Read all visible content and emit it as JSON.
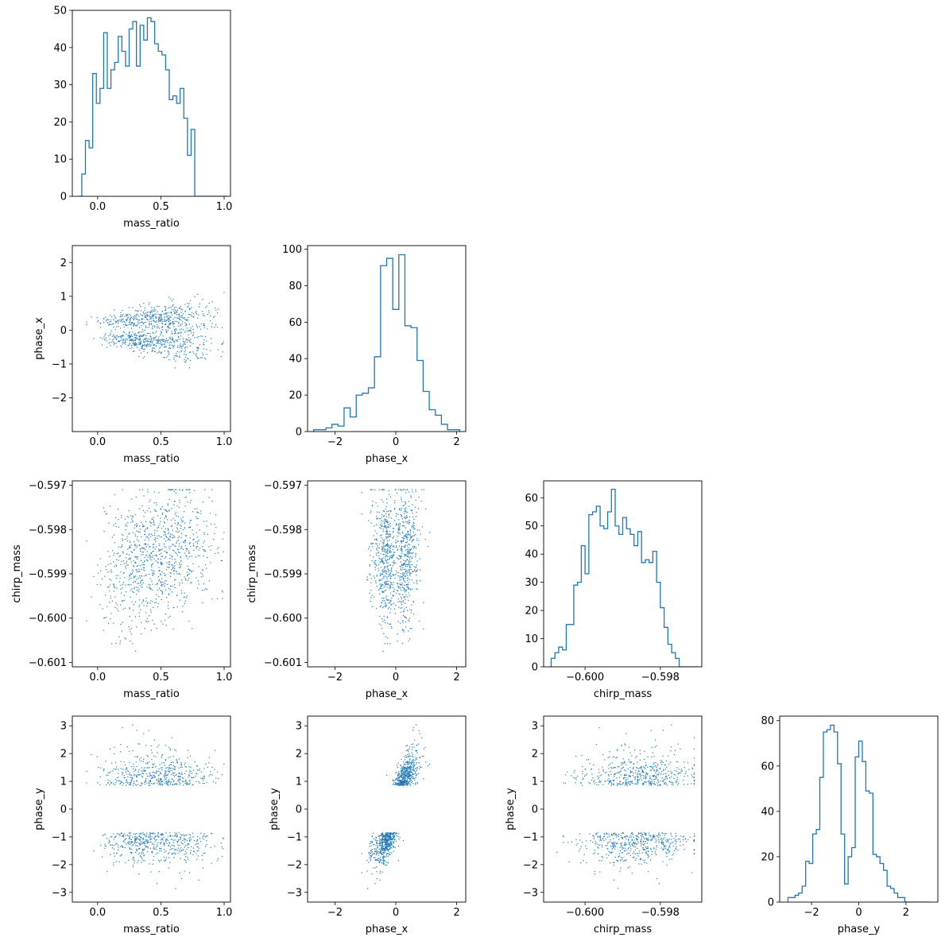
{
  "figure": {
    "type": "corner-plot",
    "parameters": [
      "mass_ratio",
      "phase_x",
      "chirp_mass",
      "phase_y"
    ],
    "accent_color": "#1f77b4"
  },
  "chart_data": [
    {
      "id": "hist-mass_ratio",
      "type": "bar",
      "style": "step-histogram",
      "row": 0,
      "col": 0,
      "xlabel": "mass_ratio",
      "ylabel": "",
      "xlim": [
        -0.2,
        1.05
      ],
      "ylim": [
        0,
        50
      ],
      "xticks": [
        0.0,
        0.5,
        1.0
      ],
      "xtick_labels": [
        "0.0",
        "0.5",
        "1.0"
      ],
      "yticks": [
        0,
        10,
        20,
        30,
        40,
        50
      ],
      "ytick_labels": [
        "0",
        "10",
        "20",
        "30",
        "40",
        "50"
      ],
      "bin_edges": [
        -0.154,
        -0.1252,
        -0.0964,
        -0.0676,
        -0.0388,
        -0.01,
        0.0188,
        0.0476,
        0.0764,
        0.1052,
        0.134,
        0.1628,
        0.1916,
        0.2204,
        0.2492,
        0.278,
        0.3068,
        0.3356,
        0.3644,
        0.3932,
        0.422,
        0.4508,
        0.4796,
        0.5084,
        0.5372,
        0.566,
        0.5948,
        0.6236,
        0.6524,
        0.6812,
        0.71,
        0.7388,
        0.7676,
        0.7964,
        0.8252,
        0.854,
        0.8828,
        0.9116,
        0.9404,
        0.9692,
        0.998,
        1.0268
      ],
      "counts": [
        0,
        6,
        15,
        13,
        33,
        25,
        29,
        44,
        29,
        34,
        36,
        43,
        39,
        35,
        45,
        47,
        35,
        46,
        42,
        48,
        47,
        41,
        39,
        38,
        34,
        26,
        27,
        25,
        29,
        21,
        11,
        18,
        0,
        0,
        0,
        0,
        0,
        0,
        0,
        0,
        0
      ]
    },
    {
      "id": "scatter-mass_ratio-phase_x",
      "type": "scatter",
      "row": 1,
      "col": 0,
      "xlabel": "mass_ratio",
      "ylabel": "phase_x",
      "xlim": [
        -0.2,
        1.05
      ],
      "ylim": [
        -3.0,
        2.5
      ],
      "xticks": [
        0.0,
        0.5,
        1.0
      ],
      "xtick_labels": [
        "0.0",
        "0.5",
        "1.0"
      ],
      "yticks": [
        -2,
        -1,
        0,
        1,
        2
      ],
      "ytick_labels": [
        "−2",
        "−1",
        "0",
        "1",
        "2"
      ],
      "n_points": 1000
    },
    {
      "id": "hist-phase_x",
      "type": "bar",
      "style": "step-histogram",
      "row": 1,
      "col": 1,
      "xlabel": "phase_x",
      "ylabel": "",
      "xlim": [
        -2.9,
        2.3
      ],
      "ylim": [
        0,
        102
      ],
      "xticks": [
        -2,
        0,
        2
      ],
      "xtick_labels": [
        "−2",
        "0",
        "2"
      ],
      "yticks": [
        0,
        20,
        40,
        60,
        80,
        100
      ],
      "ytick_labels": [
        "0",
        "20",
        "40",
        "60",
        "80",
        "100"
      ],
      "bin_edges": [
        -2.7,
        -2.5,
        -2.3,
        -2.1,
        -1.9,
        -1.7,
        -1.5,
        -1.3,
        -1.1,
        -0.9,
        -0.7,
        -0.5,
        -0.3,
        -0.1,
        0.1,
        0.3,
        0.5,
        0.7,
        0.9,
        1.1,
        1.3,
        1.5,
        1.7,
        1.9,
        2.1
      ],
      "counts": [
        1,
        1,
        2,
        4,
        3,
        13,
        8,
        20,
        21,
        24,
        41,
        91,
        95,
        67,
        97,
        58,
        57,
        39,
        22,
        12,
        9,
        4,
        1,
        1
      ]
    },
    {
      "id": "scatter-mass_ratio-chirp_mass",
      "type": "scatter",
      "row": 2,
      "col": 0,
      "xlabel": "mass_ratio",
      "ylabel": "chirp_mass",
      "xlim": [
        -0.2,
        1.05
      ],
      "ylim": [
        -0.6011,
        -0.5969
      ],
      "xticks": [
        0.0,
        0.5,
        1.0
      ],
      "xtick_labels": [
        "0.0",
        "0.5",
        "1.0"
      ],
      "yticks": [
        -0.601,
        -0.6,
        -0.599,
        -0.598,
        -0.597
      ],
      "ytick_labels": [
        "−0.601",
        "−0.600",
        "−0.599",
        "−0.598",
        "−0.597"
      ],
      "n_points": 1000
    },
    {
      "id": "scatter-phase_x-chirp_mass",
      "type": "scatter",
      "row": 2,
      "col": 1,
      "xlabel": "phase_x",
      "ylabel": "chirp_mass",
      "xlim": [
        -2.9,
        2.3
      ],
      "ylim": [
        -0.6011,
        -0.5969
      ],
      "xticks": [
        -2,
        0,
        2
      ],
      "xtick_labels": [
        "−2",
        "0",
        "2"
      ],
      "yticks": [
        -0.601,
        -0.6,
        -0.599,
        -0.598,
        -0.597
      ],
      "ytick_labels": [
        "−0.601",
        "−0.600",
        "−0.599",
        "−0.598",
        "−0.597"
      ],
      "n_points": 1000
    },
    {
      "id": "hist-chirp_mass",
      "type": "bar",
      "style": "step-histogram",
      "row": 2,
      "col": 2,
      "xlabel": "chirp_mass",
      "ylabel": "",
      "xlim": [
        -0.6011,
        -0.5969
      ],
      "ylim": [
        0,
        66
      ],
      "xticks": [
        -0.6,
        -0.598
      ],
      "xtick_labels": [
        "−0.600",
        "−0.598"
      ],
      "yticks": [
        0,
        10,
        20,
        30,
        40,
        50,
        60
      ],
      "ytick_labels": [
        "0",
        "10",
        "20",
        "30",
        "40",
        "50",
        "60"
      ],
      "bin_edges": [
        -0.6009,
        -0.6008,
        -0.6007,
        -0.6006,
        -0.6005,
        -0.6004,
        -0.6003,
        -0.6002,
        -0.6001,
        -0.6,
        -0.5999,
        -0.5998,
        -0.5997,
        -0.5996,
        -0.5995,
        -0.5994,
        -0.5993,
        -0.5992,
        -0.5991,
        -0.599,
        -0.5989,
        -0.5988,
        -0.5987,
        -0.5986,
        -0.5985,
        -0.5984,
        -0.5983,
        -0.5982,
        -0.5981,
        -0.598,
        -0.5979,
        -0.5978,
        -0.5977,
        -0.5976,
        -0.5975,
        -0.5974,
        -0.5973,
        -0.5972,
        -0.5971,
        -0.597
      ],
      "counts": [
        3,
        5,
        7,
        6,
        15,
        15,
        29,
        30,
        43,
        33,
        54,
        55,
        57,
        50,
        49,
        55,
        63,
        50,
        47,
        53,
        49,
        47,
        43,
        48,
        37,
        38,
        37,
        41,
        30,
        21,
        14,
        8,
        5,
        3,
        0,
        0,
        0,
        0,
        0
      ]
    },
    {
      "id": "scatter-mass_ratio-phase_y",
      "type": "scatter",
      "row": 3,
      "col": 0,
      "xlabel": "mass_ratio",
      "ylabel": "phase_y",
      "xlim": [
        -0.2,
        1.05
      ],
      "ylim": [
        -3.35,
        3.35
      ],
      "xticks": [
        0.0,
        0.5,
        1.0
      ],
      "xtick_labels": [
        "0.0",
        "0.5",
        "1.0"
      ],
      "yticks": [
        -3,
        -2,
        -1,
        0,
        1,
        2,
        3
      ],
      "ytick_labels": [
        "−3",
        "−2",
        "−1",
        "0",
        "1",
        "2",
        "3"
      ],
      "n_points": 1000
    },
    {
      "id": "scatter-phase_x-phase_y",
      "type": "scatter",
      "row": 3,
      "col": 1,
      "xlabel": "phase_x",
      "ylabel": "phase_y",
      "xlim": [
        -2.9,
        2.3
      ],
      "ylim": [
        -3.35,
        3.35
      ],
      "xticks": [
        -2,
        0,
        2
      ],
      "xtick_labels": [
        "−2",
        "0",
        "2"
      ],
      "yticks": [
        -3,
        -2,
        -1,
        0,
        1,
        2,
        3
      ],
      "ytick_labels": [
        "−3",
        "−2",
        "−1",
        "0",
        "1",
        "2",
        "3"
      ],
      "n_points": 1000
    },
    {
      "id": "scatter-chirp_mass-phase_y",
      "type": "scatter",
      "row": 3,
      "col": 2,
      "xlabel": "chirp_mass",
      "ylabel": "phase_y",
      "xlim": [
        -0.6011,
        -0.5969
      ],
      "ylim": [
        -3.35,
        3.35
      ],
      "xticks": [
        -0.6,
        -0.598
      ],
      "xtick_labels": [
        "−0.600",
        "−0.598"
      ],
      "yticks": [
        -3,
        -2,
        -1,
        0,
        1,
        2,
        3
      ],
      "ytick_labels": [
        "−3",
        "−2",
        "−1",
        "0",
        "1",
        "2",
        "3"
      ],
      "n_points": 1000
    },
    {
      "id": "hist-phase_y",
      "type": "bar",
      "style": "step-histogram",
      "row": 3,
      "col": 3,
      "xlabel": "phase_y",
      "ylabel": "",
      "xlim": [
        -3.35,
        3.35
      ],
      "ylim": [
        0,
        82
      ],
      "xticks": [
        -2,
        0,
        2
      ],
      "xtick_labels": [
        "−2",
        "0",
        "2"
      ],
      "yticks": [
        0,
        20,
        40,
        60,
        80
      ],
      "ytick_labels": [
        "0",
        "20",
        "40",
        "60",
        "80"
      ],
      "bin_edges": [
        -3.0,
        -2.85,
        -2.7,
        -2.55,
        -2.4,
        -2.25,
        -2.1,
        -1.95,
        -1.8,
        -1.65,
        -1.5,
        -1.35,
        -1.2,
        -1.05,
        -0.9,
        -0.75,
        -0.6,
        -0.45,
        -0.3,
        -0.15,
        0.0,
        0.15,
        0.3,
        0.45,
        0.6,
        0.75,
        0.9,
        1.05,
        1.2,
        1.35,
        1.5,
        1.65,
        1.8,
        1.95,
        2.1,
        2.25,
        2.4,
        2.55,
        2.7,
        2.85,
        3.0
      ],
      "counts": [
        2,
        2,
        3,
        4,
        7,
        18,
        17,
        30,
        32,
        55,
        75,
        76,
        78,
        75,
        61,
        30,
        8,
        20,
        24,
        64,
        71,
        62,
        49,
        48,
        21,
        20,
        17,
        14,
        7,
        6,
        4,
        2,
        2,
        0,
        0,
        0,
        0,
        0,
        0,
        0
      ]
    }
  ]
}
